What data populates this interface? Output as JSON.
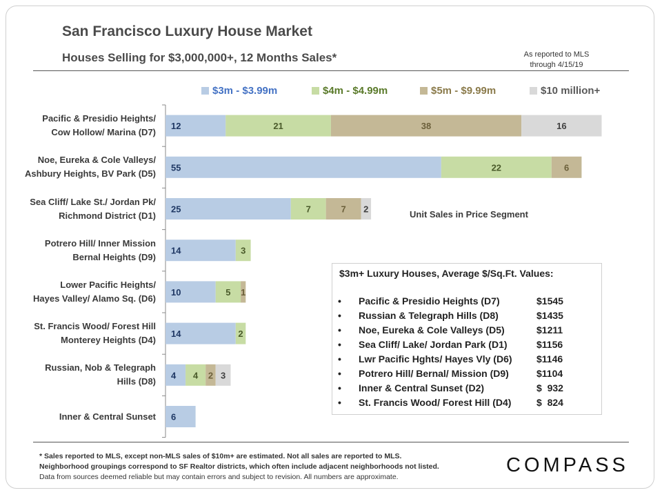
{
  "title": "San Francisco Luxury House Market",
  "subtitle": "Houses Selling for $3,000,000+, 12 Months Sales*",
  "as_of": [
    "As reported to MLS",
    "through 4/15/19"
  ],
  "segment_note": "Unit Sales in Price Segment",
  "chart_data": {
    "type": "bar",
    "orientation": "horizontal",
    "stacked": true,
    "categories": [
      [
        "Pacific & Presidio Heights/",
        "Cow Hollow/ Marina (D7)"
      ],
      [
        "Noe, Eureka & Cole Valleys/",
        "Ashbury Heights, BV Park (D5)"
      ],
      [
        "Sea Cliff/ Lake St./ Jordan Pk/",
        "Richmond District (D1)"
      ],
      [
        "Potrero Hill/ Inner Mission",
        "Bernal Heights (D9)"
      ],
      [
        "Lower Pacific Heights/",
        "Hayes Valley/ Alamo Sq. (D6)"
      ],
      [
        "St. Francis Wood/ Forest Hill",
        "Monterey Heights (D4)"
      ],
      [
        "Russian, Nob & Telegraph",
        "Hills (D8)"
      ],
      [
        "Inner & Central Sunset"
      ]
    ],
    "series": [
      {
        "name": "$3m - $3.99m",
        "color": "#b8cce4",
        "label_color": "#1f3864",
        "values": [
          12,
          55,
          25,
          14,
          10,
          14,
          4,
          6
        ]
      },
      {
        "name": "$4m - $4.99m",
        "color": "#c7dca4",
        "label_color": "#4a5a2a",
        "values": [
          21,
          22,
          7,
          3,
          5,
          2,
          4,
          0
        ]
      },
      {
        "name": "$5m - $9.99m",
        "color": "#c4b896",
        "label_color": "#6b5f3a",
        "values": [
          38,
          6,
          7,
          0,
          1,
          0,
          2,
          0
        ]
      },
      {
        "name": "$10 million+",
        "color": "#d9d9d9",
        "label_color": "#404040",
        "values": [
          16,
          0,
          2,
          0,
          0,
          0,
          3,
          0
        ]
      }
    ],
    "legend_text_colors": [
      "#4472c4",
      "#5a7a2a",
      "#8a7a4a",
      "#595959"
    ],
    "legend_position": "top"
  },
  "avg_box": {
    "title": "$3m+ Luxury Houses, Average $/Sq.Ft. Values:",
    "items": [
      {
        "name": "Pacific & Presidio Heights (D7)",
        "value": "$1545"
      },
      {
        "name": "Russian & Telegraph Hills (D8)",
        "value": "$1435"
      },
      {
        "name": "Noe, Eureka & Cole Valleys (D5)",
        "value": "$1211"
      },
      {
        "name": "Sea Cliff/ Lake/ Jordan Park (D1)",
        "value": "$1156"
      },
      {
        "name": "Lwr Pacific Hghts/ Hayes Vly (D6)",
        "value": "$1146"
      },
      {
        "name": "Potrero Hill/ Bernal/ Mission (D9)",
        "value": "$1104"
      },
      {
        "name": "Inner & Central Sunset (D2)",
        "value": "$  932"
      },
      {
        "name": "St. Francis Wood/ Forest Hill (D4)",
        "value": "$  824"
      }
    ]
  },
  "footnote": {
    "bold_lines": [
      "* Sales reported to MLS, except non-MLS sales of $10m+ are estimated. Not all sales are reported to MLS.",
      "Neighborhood groupings correspond to SF Realtor districts, which often include adjacent neighborhoods not listed."
    ],
    "plain_line": "Data from sources deemed reliable but may contain errors and subject to revision. All numbers are approximate."
  },
  "logo": "COMPASS"
}
